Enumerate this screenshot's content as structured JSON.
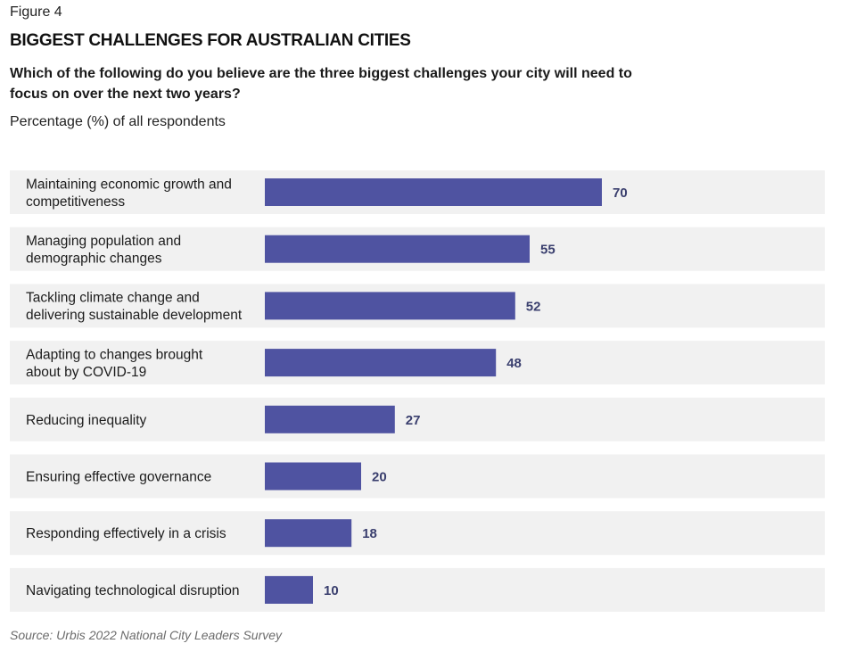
{
  "figure_label": "Figure 4",
  "title": "BIGGEST CHALLENGES FOR AUSTRALIAN CITIES",
  "question": "Which of the following do you believe are the three biggest challenges your city will need to focus on over the next two years?",
  "unit_label": "Percentage (%) of all respondents",
  "source": "Source: Urbis 2022 National City Leaders Survey",
  "colors": {
    "bar": "#4f53a1",
    "row_background": "#f1f1f1",
    "value_text": "#3a3f6e"
  },
  "chart_data": {
    "type": "bar",
    "orientation": "horizontal",
    "categories": [
      [
        "Maintaining economic growth and",
        "competitiveness"
      ],
      [
        "Managing population and",
        "demographic changes"
      ],
      [
        "Tackling climate change and",
        "delivering sustainable development"
      ],
      [
        "Adapting to changes brought",
        "about by COVID-19"
      ],
      [
        "Reducing inequality"
      ],
      [
        "Ensuring effective governance"
      ],
      [
        "Responding effectively in a crisis"
      ],
      [
        "Navigating technological disruption"
      ]
    ],
    "values": [
      70,
      55,
      52,
      48,
      27,
      20,
      18,
      10
    ],
    "data_labels": true,
    "grid": false,
    "legend": false
  }
}
